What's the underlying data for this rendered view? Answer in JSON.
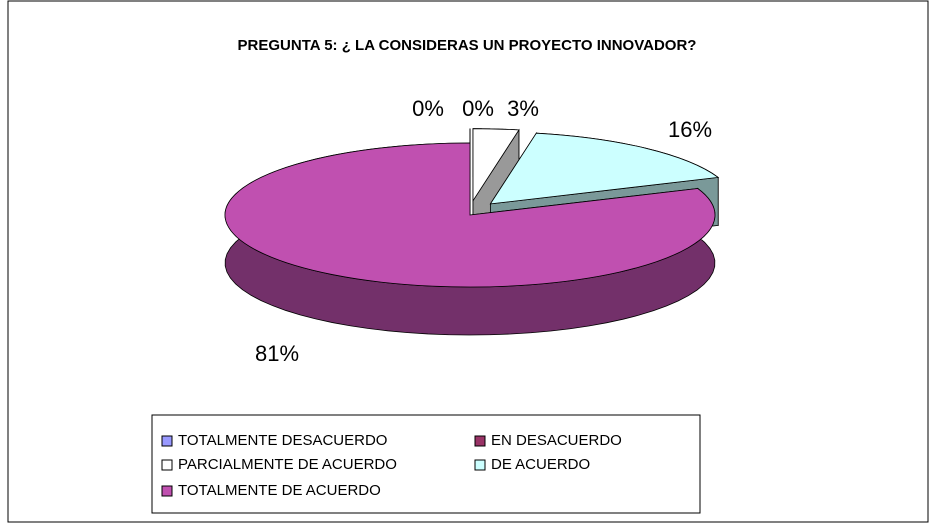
{
  "chart_data": {
    "type": "pie3d",
    "title": "PREGUNTA 5: ¿ LA CONSIDERAS UN PROYECTO INNOVADOR?",
    "categories": [
      "TOTALMENTE DESACUERDO",
      "EN DESACUERDO",
      "PARCIALMENTE DE ACUERDO",
      "DE ACUERDO",
      "TOTALMENTE DE ACUERDO"
    ],
    "values": [
      0,
      0,
      3,
      16,
      81
    ],
    "value_labels": [
      "0%",
      "0%",
      "3%",
      "16%",
      "81%"
    ],
    "colors": [
      "#9999ff",
      "#993366",
      "#ffffff",
      "#ccffff",
      "#c050b0"
    ],
    "legend": "bottom"
  }
}
